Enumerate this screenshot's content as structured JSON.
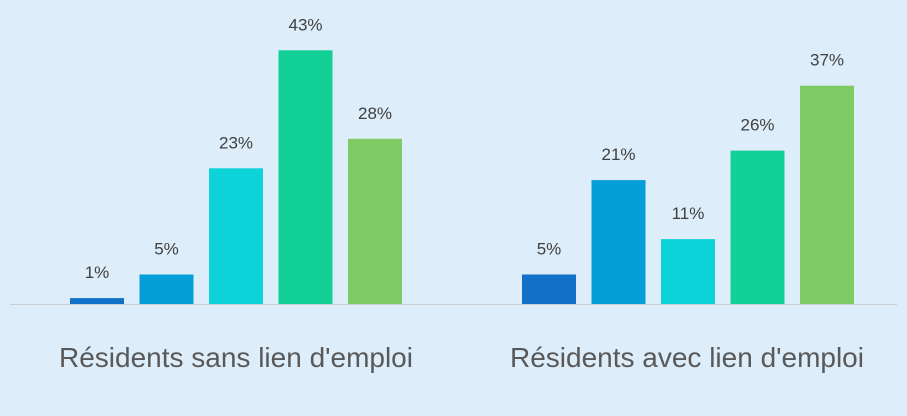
{
  "chart_data": {
    "type": "bar",
    "categories": [
      "Résidents sans lien d'emploi",
      "Résidents avec lien d'emploi"
    ],
    "series": [
      {
        "color": "#1170c8",
        "values": [
          1,
          5
        ],
        "value_labels": [
          "1%",
          "5%"
        ]
      },
      {
        "color": "#049fd9",
        "values": [
          5,
          21
        ],
        "value_labels": [
          "5%",
          "21%"
        ]
      },
      {
        "color": "#0dd3d9",
        "values": [
          23,
          11
        ],
        "value_labels": [
          "23%",
          "11%"
        ]
      },
      {
        "color": "#12d096",
        "values": [
          43,
          26
        ],
        "value_labels": [
          "43%",
          "26%"
        ]
      },
      {
        "color": "#7dcb62",
        "values": [
          28,
          37
        ],
        "value_labels": [
          "28%",
          "37%"
        ]
      }
    ]
  }
}
